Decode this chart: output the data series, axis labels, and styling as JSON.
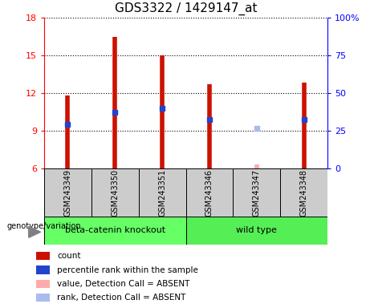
{
  "title": "GDS3322 / 1429147_at",
  "samples": [
    "GSM243349",
    "GSM243350",
    "GSM243351",
    "GSM243346",
    "GSM243347",
    "GSM243348"
  ],
  "count_values": [
    11.8,
    16.5,
    15.0,
    12.7,
    6.3,
    12.8
  ],
  "percentile_values": [
    9.5,
    10.5,
    10.8,
    9.9,
    9.2,
    9.9
  ],
  "absent_samples": [
    4
  ],
  "ylim_left": [
    6,
    18
  ],
  "ylim_right": [
    0,
    100
  ],
  "yticks_left": [
    6,
    9,
    12,
    15,
    18
  ],
  "yticks_right": [
    0,
    25,
    50,
    75,
    100
  ],
  "ytick_labels_right": [
    "0",
    "25",
    "50",
    "75",
    "100%"
  ],
  "bar_color": "#cc1100",
  "bar_color_absent": "#ffaaaa",
  "blue_color": "#2244cc",
  "blue_color_absent": "#aabbee",
  "group_defs": [
    {
      "name": "beta-catenin knockout",
      "indices": [
        0,
        1,
        2
      ],
      "color": "#66ff66"
    },
    {
      "name": "wild type",
      "indices": [
        3,
        4,
        5
      ],
      "color": "#55ee55"
    }
  ],
  "sample_box_color": "#cccccc",
  "title_fontsize": 11,
  "tick_fontsize": 8,
  "legend_items": [
    {
      "label": "count",
      "color": "#cc1100"
    },
    {
      "label": "percentile rank within the sample",
      "color": "#2244cc"
    },
    {
      "label": "value, Detection Call = ABSENT",
      "color": "#ffaaaa"
    },
    {
      "label": "rank, Detection Call = ABSENT",
      "color": "#aabbee"
    }
  ]
}
